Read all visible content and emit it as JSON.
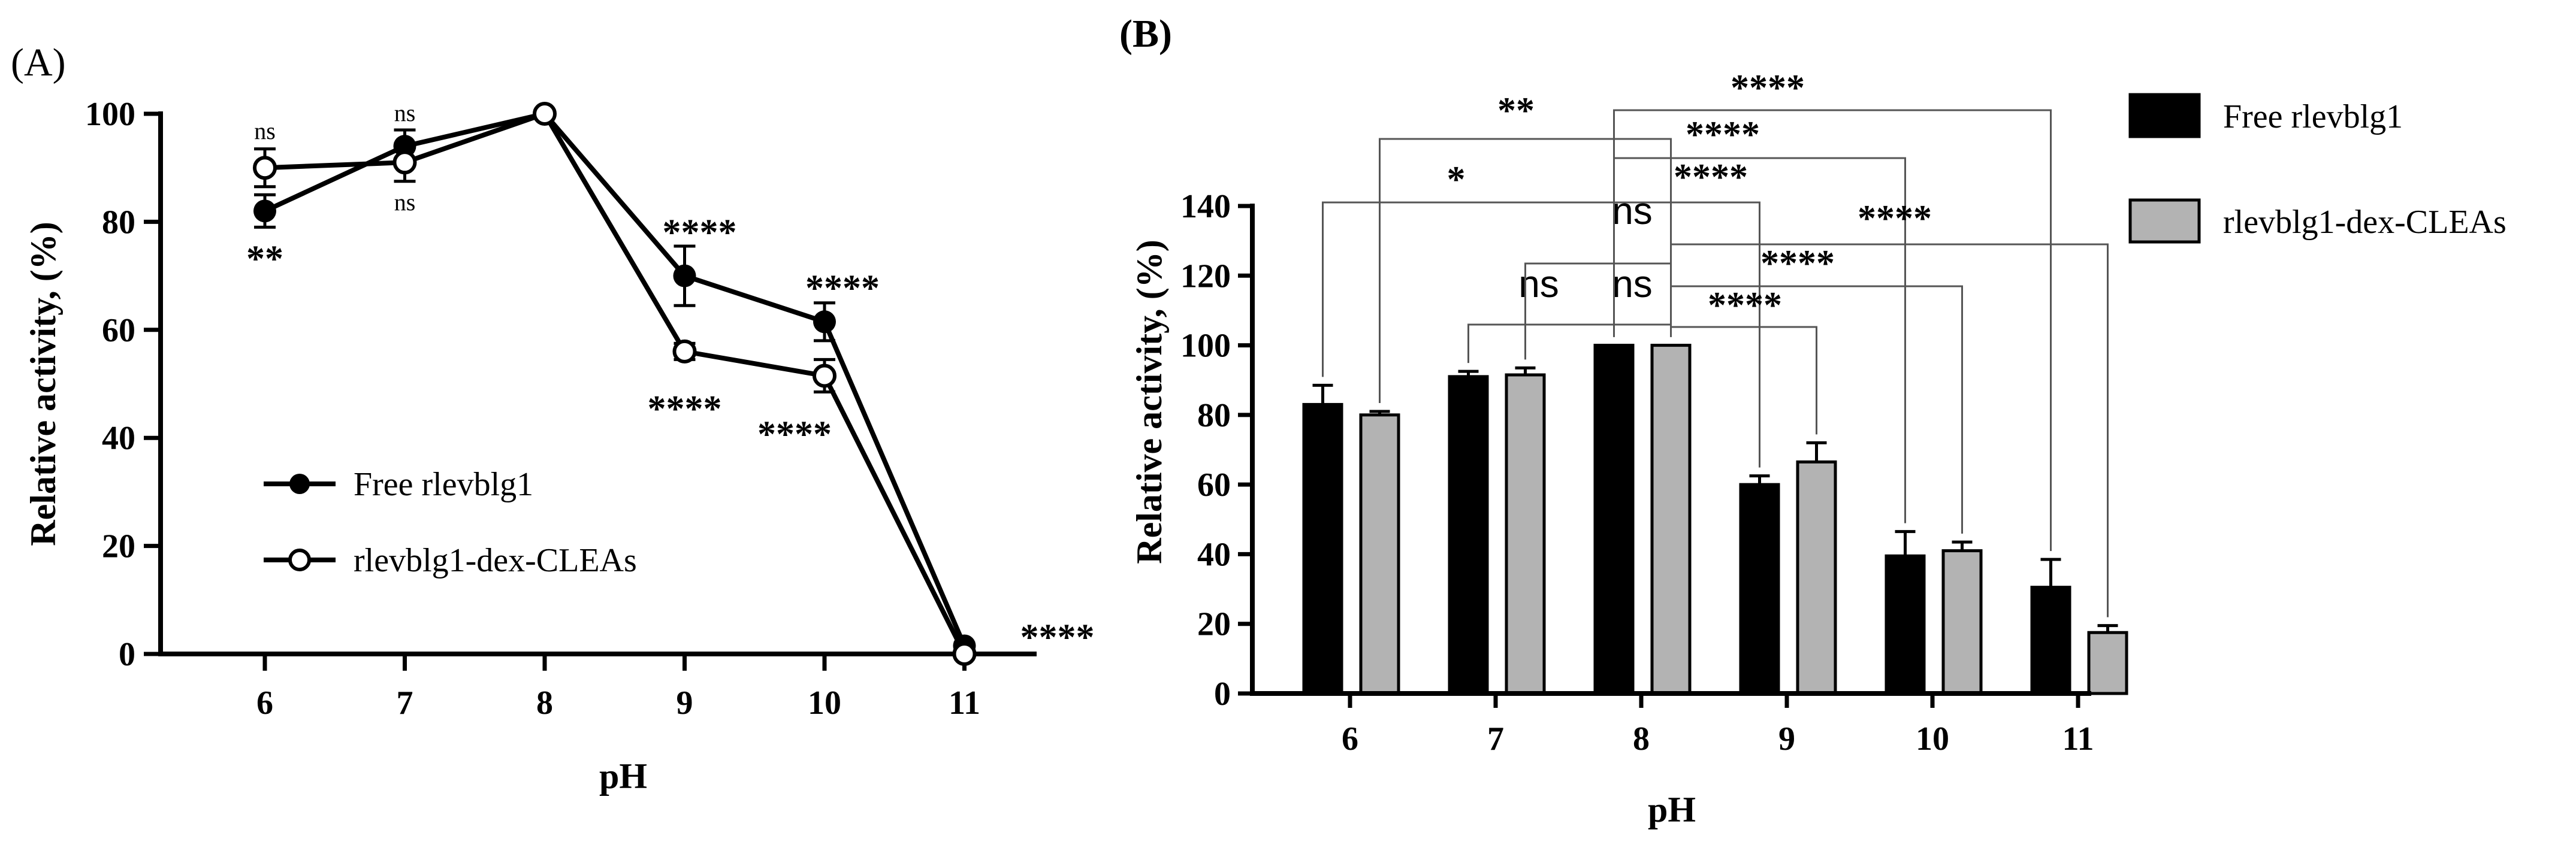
{
  "chart_data": [
    {
      "type": "line",
      "panel_label": "(A)",
      "xlabel": "pH",
      "ylabel": "Relative activity, (%)",
      "x": [
        6,
        7,
        8,
        9,
        10,
        11
      ],
      "xticks": [
        "6",
        "7",
        "8",
        "9",
        "10",
        "11"
      ],
      "ylim": [
        0,
        100
      ],
      "yticks": [
        "0",
        "20",
        "40",
        "60",
        "80",
        "100"
      ],
      "legend_position": "center-left",
      "series": [
        {
          "name": "Free rlevblg1",
          "marker": "filled-circle",
          "values": [
            82,
            94,
            100,
            70,
            61.5,
            1.5
          ],
          "errors": [
            3,
            3,
            0,
            5.5,
            3.5,
            0.5
          ]
        },
        {
          "name": "rlevblg1-dex-CLEAs",
          "marker": "open-circle",
          "values": [
            90,
            91,
            100,
            56,
            51.5,
            0
          ],
          "errors": [
            3.5,
            3.5,
            0,
            1.5,
            3,
            0
          ]
        }
      ],
      "annotations": [
        {
          "x": 6,
          "text": "ns",
          "pos": "above"
        },
        {
          "x": 6,
          "text": "**",
          "pos": "below"
        },
        {
          "x": 7,
          "text": "ns",
          "pos": "above"
        },
        {
          "x": 7,
          "text": "ns",
          "pos": "below"
        },
        {
          "x": 9,
          "text": "****",
          "pos": "above"
        },
        {
          "x": 9,
          "text": "****",
          "pos": "below"
        },
        {
          "x": 10,
          "text": "****",
          "pos": "above"
        },
        {
          "x": 10,
          "text": "****",
          "pos": "below"
        },
        {
          "x": 11,
          "text": "****",
          "pos": "right"
        }
      ]
    },
    {
      "type": "bar",
      "panel_label": "(B)",
      "xlabel": "pH",
      "ylabel": "Relative activity, (%)",
      "categories": [
        "6",
        "7",
        "8",
        "9",
        "10",
        "11"
      ],
      "ylim": [
        0,
        140
      ],
      "yticks": [
        "0",
        "20",
        "40",
        "60",
        "80",
        "100",
        "120",
        "140"
      ],
      "legend_position": "top-right",
      "series": [
        {
          "name": "Free rlevblg1",
          "color": "#000000",
          "values": [
            83,
            91,
            100,
            60,
            39.5,
            30.5
          ],
          "errors": [
            5.5,
            1.5,
            0,
            2.5,
            7,
            8
          ]
        },
        {
          "name": "rlevblg1-dex-CLEAs",
          "color": "#b3b3b3",
          "values": [
            80,
            91.5,
            100,
            66.5,
            41,
            17.5
          ],
          "errors": [
            1,
            2,
            0,
            5.5,
            2.5,
            2
          ]
        }
      ],
      "comparisons": [
        {
          "a": "7 free",
          "b": "8 free",
          "text": "ns"
        },
        {
          "a": "8 free",
          "b": "8 CLEAs",
          "text": "ns"
        },
        {
          "a": "7 CLEAs",
          "b": "8 CLEAs",
          "text": "ns"
        },
        {
          "a": "6 free",
          "b": "8 free",
          "text": "*"
        },
        {
          "a": "6 CLEAs",
          "b": "8 CLEAs",
          "text": "**"
        },
        {
          "a": "8 free",
          "b": "9 free",
          "text": "****"
        },
        {
          "a": "8 free",
          "b": "10 free",
          "text": "****"
        },
        {
          "a": "8 free",
          "b": "11 free",
          "text": "****"
        },
        {
          "a": "8 CLEAs",
          "b": "9 CLEAs",
          "text": "****"
        },
        {
          "a": "8 CLEAs",
          "b": "10 CLEAs",
          "text": "****"
        },
        {
          "a": "8 CLEAs",
          "b": "11 CLEAs",
          "text": "****"
        }
      ]
    }
  ]
}
